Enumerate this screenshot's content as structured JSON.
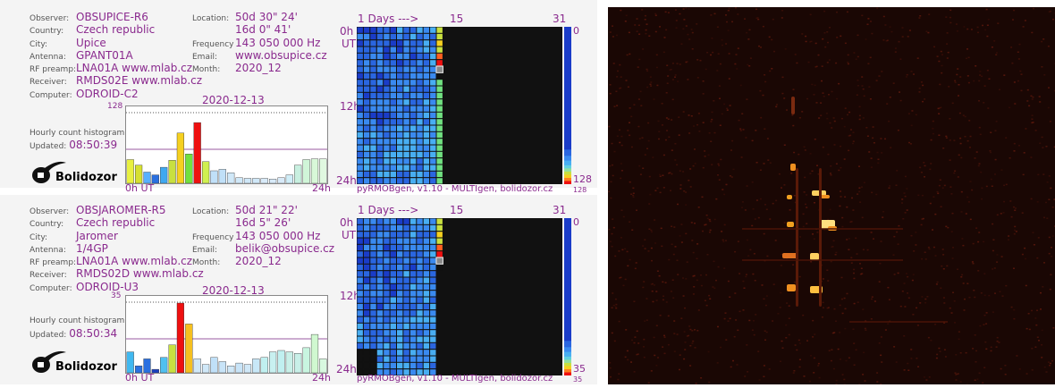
{
  "panels": [
    {
      "observer": "OBSUPICE-R6",
      "country": "Czech republic",
      "city": "Upice",
      "antenna": "GPANT01A",
      "rf_preamp": "LNA01A www.mlab.cz",
      "receiver": "RMDS02E www.mlab.cz",
      "computer": "ODROID-C2",
      "location_lat": "50d 30\" 24'",
      "location_lon": "16d 0\" 41'",
      "frequency": "143 050 000 Hz",
      "email": "www.obsupice.cz",
      "month": "2020_12",
      "date": "2020-12-13",
      "hist_max": "128",
      "updated": "08:50:39",
      "scale_max": "128",
      "scale_max_small": "128",
      "hist_values": [
        0.34,
        0.26,
        0.16,
        0.12,
        0.23,
        0.33,
        0.72,
        0.42,
        0.87,
        0.31,
        0.18,
        0.2,
        0.15,
        0.08,
        0.07,
        0.07,
        0.07,
        0.06,
        0.08,
        0.12,
        0.26,
        0.34,
        0.35,
        0.35
      ],
      "hist_colors": [
        "#e8f040",
        "#d6e030",
        "#58b0ff",
        "#2a70e0",
        "#40a8f0",
        "#c8e040",
        "#f5d020",
        "#70e040",
        "#ee1010",
        "#d0f050",
        "#c0e0f8",
        "#c0e0f8",
        "#d0e8f8",
        "#d0e8f8",
        "#d0e8f8",
        "#d0e8f8",
        "#d8eaf8",
        "#d8eaf8",
        "#d8eaf8",
        "#d0eef8",
        "#c8f0e0",
        "#d0f5d8",
        "#d8f8d8",
        "#e0f8e0"
      ]
    },
    {
      "observer": "OBSJAROMER-R5",
      "country": "Czech republic",
      "city": "Jaromer",
      "antenna": "1/4GP",
      "rf_preamp": "LNA01A www.mlab.cz",
      "receiver": "RMDS02D www.mlab.cz",
      "computer": "ODROID-U3",
      "location_lat": "50d 21\" 22'",
      "location_lon": "16d 5\" 26'",
      "frequency": "143 050 000 Hz",
      "email": "belik@obsupice.cz",
      "month": "2020_12",
      "date": "2020-12-13",
      "hist_max": "35",
      "updated": "08:50:34",
      "scale_max": "35",
      "scale_max_small": "35",
      "hist_values": [
        0.3,
        0.1,
        0.2,
        0.05,
        0.22,
        0.4,
        1.0,
        0.7,
        0.2,
        0.12,
        0.22,
        0.16,
        0.1,
        0.14,
        0.12,
        0.2,
        0.22,
        0.3,
        0.32,
        0.3,
        0.28,
        0.36,
        0.55,
        0.2
      ],
      "hist_colors": [
        "#40b8f0",
        "#2a70e0",
        "#2a70e0",
        "#1a40c0",
        "#50c0f0",
        "#c8e040",
        "#ee1010",
        "#f5c020",
        "#d0e8f8",
        "#d0e8f8",
        "#c0e0f8",
        "#c8e4f8",
        "#d0e8f8",
        "#c8e4f8",
        "#d0e8f8",
        "#c8e8f8",
        "#c0f0f0",
        "#c8f0f0",
        "#c0f0f0",
        "#c8f0e8",
        "#c8f0e8",
        "#c8f5e0",
        "#d0f8d0",
        "#d8f8e0"
      ]
    }
  ],
  "labels": {
    "observer": "Observer:",
    "country": "Country:",
    "city": "City:",
    "antenna": "Antenna:",
    "rf_preamp": "RF preamp:",
    "receiver": "Receiver:",
    "computer": "Computer:",
    "location": "Location:",
    "frequency": "Frequency",
    "email": "Email:",
    "month": "Month:",
    "hourly": "Hourly count histogram",
    "updated": "Updated:",
    "x_start": "0h UT",
    "x_end": "24h",
    "days": "1 Days --->",
    "day15": "15",
    "day31": "31",
    "h0": "0h",
    "ut": "UT",
    "h12": "12h",
    "h24": "24h",
    "scale_min": "0",
    "footer": "pyRMOBgen, v1.10 - MULTIgen, bolidozor.cz",
    "logo": "Bolidozor"
  },
  "colors": {
    "accent": "#8a2a8e",
    "grid_bg": "#111111"
  }
}
